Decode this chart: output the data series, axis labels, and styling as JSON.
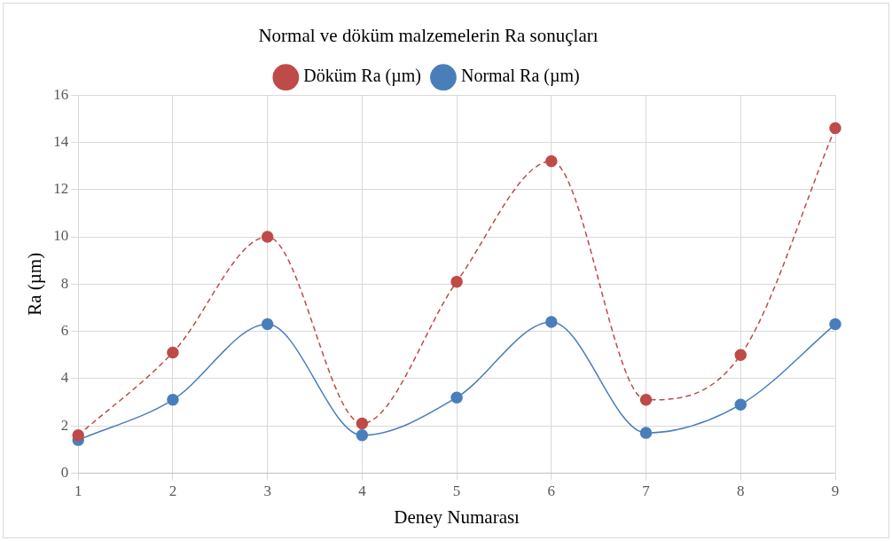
{
  "chart_data": {
    "type": "line",
    "title": "Normal ve döküm malzemelerin Ra sonuçları",
    "xlabel": "Deney Numarası",
    "ylabel": "Ra (µm)",
    "categories": [
      "1",
      "2",
      "3",
      "4",
      "5",
      "6",
      "7",
      "8",
      "9"
    ],
    "series": [
      {
        "name": "Normal Ra (µm)",
        "color": "#4a7ebb",
        "values": [
          1.4,
          3.1,
          6.3,
          1.6,
          3.2,
          6.4,
          1.7,
          2.9,
          6.3
        ],
        "line_style": "solid"
      },
      {
        "name": "Döküm Ra (µm)",
        "color": "#be4b48",
        "values": [
          1.6,
          5.1,
          10.0,
          2.1,
          8.1,
          13.2,
          3.1,
          5.0,
          14.6
        ],
        "line_style": "dashed"
      }
    ],
    "ylim": [
      0,
      16
    ],
    "yticks": [
      0,
      2,
      4,
      6,
      8,
      10,
      12,
      14,
      16
    ],
    "grid": true,
    "legend": "top",
    "marker": "circle"
  }
}
